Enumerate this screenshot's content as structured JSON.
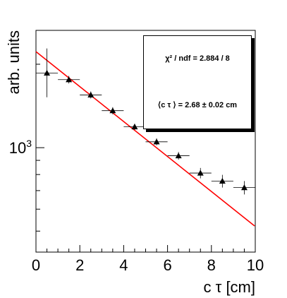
{
  "chart_data": {
    "type": "scatter",
    "xlabel": "c τ [cm]",
    "ylabel": "arb. units",
    "xlim": [
      0,
      10
    ],
    "ylim": [
      420,
      2650
    ],
    "y_scale": "log",
    "x_ticks": [
      0,
      2,
      4,
      6,
      8,
      10
    ],
    "y_tick_label": {
      "base": "10",
      "exponent": "3"
    },
    "y_tick_value": 1000,
    "grid": false,
    "series": [
      {
        "marker": "triangle",
        "color": "#000000",
        "x": [
          0.5,
          1.5,
          2.5,
          3.5,
          4.5,
          5.5,
          6.5,
          7.5,
          8.5,
          9.5
        ],
        "y": [
          1860,
          1760,
          1550,
          1360,
          1190,
          1050,
          935,
          810,
          758,
          718
        ],
        "xerr": 0.5,
        "yerr": [
          [
            340,
            55,
            45,
            40,
            30,
            30,
            30,
            35,
            40,
            40
          ],
          [
            420,
            55,
            45,
            40,
            30,
            30,
            30,
            35,
            40,
            40
          ]
        ]
      },
      {
        "kind": "fit_line",
        "color": "#ff0000",
        "x": [
          0,
          9.97
        ],
        "y": [
          2220,
          522
        ]
      }
    ]
  },
  "fit_box": {
    "chi2_label": "χ² / ndf = 2.884 / 8",
    "ctau_label": "⟨c τ ⟩ = 2.68 ± 0.02 cm"
  }
}
